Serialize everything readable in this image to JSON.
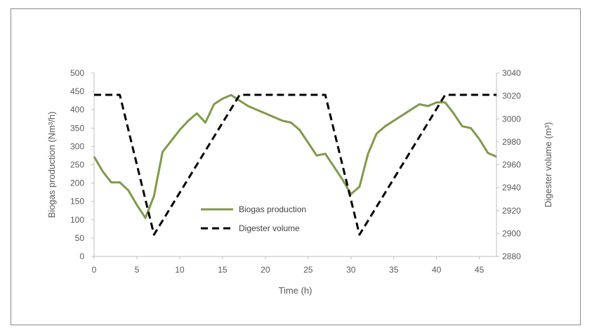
{
  "chart_data": {
    "type": "line",
    "title": "",
    "xlabel": "Time (h)",
    "ylabel_left": "Biogas production (Nm³/h)",
    "ylabel_right": "Digester volume (m³)",
    "xlim": [
      0,
      47
    ],
    "ylim_left": [
      0,
      500
    ],
    "ylim_right": [
      2880,
      3040
    ],
    "x_ticks": [
      0,
      5,
      10,
      15,
      20,
      25,
      30,
      35,
      40,
      45
    ],
    "y_ticks_left": [
      0,
      50,
      100,
      150,
      200,
      250,
      300,
      350,
      400,
      450,
      500
    ],
    "y_ticks_right": [
      2880,
      2900,
      2920,
      2940,
      2960,
      2980,
      3000,
      3020,
      3040
    ],
    "grid": false,
    "legend_position": "center-left",
    "series": [
      {
        "name": "Biogas production",
        "axis": "left",
        "color": "#7f9a4a",
        "style": "solid",
        "x": [
          0,
          1,
          2,
          3,
          4,
          5,
          6,
          7,
          8,
          9,
          10,
          11,
          12,
          13,
          14,
          15,
          16,
          17,
          18,
          19,
          20,
          21,
          22,
          23,
          24,
          25,
          26,
          27,
          28,
          29,
          30,
          31,
          32,
          33,
          34,
          35,
          36,
          37,
          38,
          39,
          40,
          41,
          42,
          43,
          44,
          45,
          46,
          47
        ],
        "values": [
          272,
          232,
          202,
          202,
          180,
          140,
          105,
          165,
          285,
          315,
          345,
          370,
          390,
          365,
          415,
          430,
          440,
          425,
          410,
          400,
          390,
          380,
          370,
          365,
          345,
          310,
          275,
          280,
          245,
          210,
          170,
          190,
          280,
          335,
          355,
          370,
          385,
          400,
          415,
          410,
          420,
          420,
          390,
          355,
          350,
          320,
          282,
          272
        ]
      },
      {
        "name": "Digester volume",
        "axis": "right",
        "color": "#000000",
        "style": "dashed",
        "x": [
          0,
          3,
          7,
          17,
          27,
          31,
          41,
          47
        ],
        "values": [
          3021,
          3021,
          2899,
          3021,
          3021,
          2899,
          3021,
          3021
        ]
      }
    ]
  }
}
